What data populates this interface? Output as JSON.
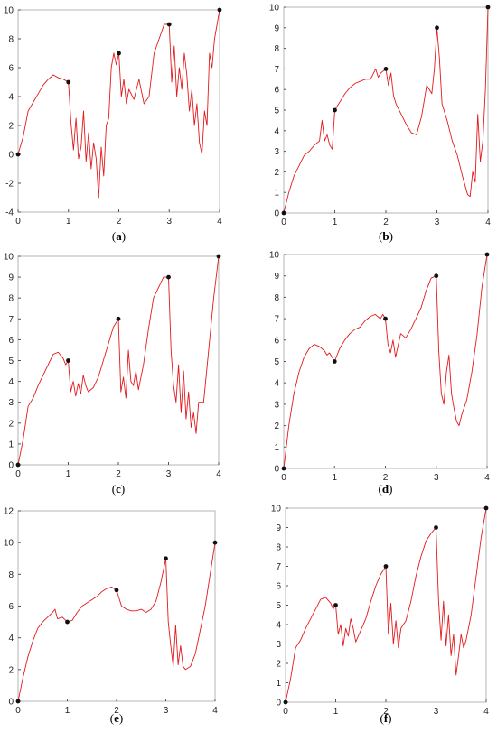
{
  "colors": {
    "curve": "#e3191c",
    "point": "#111111",
    "frame": "#b4b4b4"
  },
  "chart_data": [
    {
      "id": "a",
      "caption": "a",
      "type": "line",
      "xlim": [
        0,
        4
      ],
      "ylim": [
        -4,
        10
      ],
      "xticks": [
        0,
        1,
        2,
        3,
        4
      ],
      "yticks": [
        -4,
        -2,
        0,
        2,
        4,
        6,
        8,
        10
      ],
      "interpolation_points": [
        [
          0,
          0
        ],
        [
          1,
          5
        ],
        [
          2,
          7
        ],
        [
          3,
          9
        ],
        [
          4,
          10
        ]
      ],
      "series": [
        {
          "x": [
            0,
            0.1,
            0.2,
            0.3,
            0.4,
            0.5,
            0.6,
            0.7,
            0.8,
            0.9,
            1,
            1.05,
            1.1,
            1.15,
            1.2,
            1.25,
            1.3,
            1.35,
            1.4,
            1.45,
            1.5,
            1.55,
            1.6,
            1.65,
            1.7,
            1.75,
            1.8,
            1.85,
            1.9,
            1.95,
            2,
            2.05,
            2.1,
            2.15,
            2.2,
            2.3,
            2.4,
            2.5,
            2.6,
            2.7,
            2.8,
            2.9,
            3,
            3.05,
            3.1,
            3.15,
            3.2,
            3.25,
            3.3,
            3.35,
            3.4,
            3.45,
            3.5,
            3.55,
            3.6,
            3.65,
            3.7,
            3.75,
            3.8,
            3.85,
            3.9,
            4
          ],
          "y": [
            0,
            1.2,
            3,
            3.6,
            4.2,
            4.8,
            5.2,
            5.5,
            5.3,
            5.2,
            5,
            2.2,
            0.3,
            2.5,
            -0.3,
            0.5,
            3,
            -0.5,
            1.5,
            -1,
            0.8,
            -0.3,
            -3,
            0.5,
            -1.5,
            2,
            2.5,
            6,
            7,
            6.2,
            7,
            4,
            5.2,
            3.5,
            4.5,
            3.8,
            5.2,
            3.5,
            4,
            7,
            8,
            9,
            9,
            5,
            7.5,
            4,
            6,
            4.5,
            7,
            5.5,
            3,
            4.5,
            2,
            3.5,
            0.8,
            0,
            3,
            2,
            7,
            6,
            8,
            10
          ]
        }
      ]
    },
    {
      "id": "b",
      "caption": "b",
      "type": "line",
      "xlim": [
        0,
        4
      ],
      "ylim": [
        0,
        10
      ],
      "xticks": [
        0,
        1,
        2,
        3,
        4
      ],
      "yticks": [
        0,
        1,
        2,
        3,
        4,
        5,
        6,
        7,
        8,
        9,
        10
      ],
      "interpolation_points": [
        [
          0,
          0
        ],
        [
          1,
          5
        ],
        [
          2,
          7
        ],
        [
          3,
          9
        ],
        [
          4,
          10
        ]
      ],
      "series": [
        {
          "x": [
            0,
            0.1,
            0.2,
            0.3,
            0.4,
            0.5,
            0.6,
            0.7,
            0.75,
            0.8,
            0.85,
            0.9,
            0.95,
            1,
            1.1,
            1.2,
            1.3,
            1.4,
            1.5,
            1.6,
            1.7,
            1.8,
            1.85,
            1.9,
            2,
            2.05,
            2.1,
            2.15,
            2.2,
            2.3,
            2.4,
            2.5,
            2.6,
            2.7,
            2.8,
            2.9,
            2.95,
            3,
            3.05,
            3.1,
            3.2,
            3.3,
            3.4,
            3.5,
            3.6,
            3.65,
            3.7,
            3.75,
            3.8,
            3.85,
            3.9,
            3.95,
            4
          ],
          "y": [
            0,
            1,
            1.8,
            2.3,
            2.8,
            3,
            3.3,
            3.5,
            4.5,
            3.5,
            3.8,
            3.3,
            3.1,
            5,
            5.4,
            5.8,
            6.1,
            6.3,
            6.4,
            6.5,
            6.5,
            7,
            6.6,
            6.8,
            7,
            6.2,
            6.8,
            5.7,
            5.3,
            4.8,
            4.3,
            3.9,
            3.8,
            4.7,
            6.2,
            5.8,
            7,
            9,
            7.5,
            5.3,
            4.5,
            3.5,
            2.8,
            1.8,
            0.9,
            0.8,
            2,
            1.5,
            4.8,
            2.5,
            3.5,
            6,
            10
          ]
        }
      ]
    },
    {
      "id": "c",
      "caption": "c",
      "type": "line",
      "xlim": [
        0,
        4
      ],
      "ylim": [
        0,
        10
      ],
      "xticks": [
        0,
        1,
        2,
        3,
        4
      ],
      "yticks": [
        0,
        1,
        2,
        3,
        4,
        5,
        6,
        7,
        8,
        9,
        10
      ],
      "interpolation_points": [
        [
          0,
          0
        ],
        [
          1,
          5
        ],
        [
          2,
          7
        ],
        [
          3,
          9
        ],
        [
          4,
          10
        ]
      ],
      "series": [
        {
          "x": [
            0,
            0.1,
            0.2,
            0.3,
            0.4,
            0.5,
            0.6,
            0.7,
            0.8,
            0.9,
            0.95,
            1,
            1.05,
            1.1,
            1.15,
            1.2,
            1.25,
            1.3,
            1.35,
            1.4,
            1.5,
            1.6,
            1.7,
            1.8,
            1.9,
            1.95,
            2,
            2.05,
            2.1,
            2.15,
            2.2,
            2.25,
            2.3,
            2.35,
            2.4,
            2.5,
            2.6,
            2.7,
            2.8,
            2.9,
            3,
            3.05,
            3.1,
            3.15,
            3.2,
            3.25,
            3.3,
            3.35,
            3.4,
            3.45,
            3.5,
            3.55,
            3.6,
            3.7,
            3.8,
            3.9,
            4
          ],
          "y": [
            0,
            1.2,
            2.8,
            3.2,
            3.8,
            4.3,
            4.8,
            5.3,
            5.4,
            5.1,
            4.8,
            5,
            3.5,
            4,
            3.3,
            3.9,
            3.4,
            4.3,
            3.8,
            3.5,
            3.7,
            4.2,
            5,
            5.8,
            6.6,
            6.8,
            7,
            3.5,
            4.2,
            3.2,
            5.5,
            4,
            3.8,
            4.5,
            3.6,
            4.8,
            6.5,
            8,
            8.5,
            9,
            9,
            5.5,
            3.8,
            3,
            4.8,
            2.5,
            4.5,
            2.2,
            3.5,
            1.8,
            2.5,
            1.5,
            3,
            3,
            5.5,
            8,
            10
          ]
        }
      ]
    },
    {
      "id": "d",
      "caption": "d",
      "type": "line",
      "xlim": [
        0,
        4
      ],
      "ylim": [
        0,
        10
      ],
      "xticks": [
        0,
        1,
        2,
        3,
        4
      ],
      "yticks": [
        0,
        1,
        2,
        3,
        4,
        5,
        6,
        7,
        8,
        9,
        10
      ],
      "interpolation_points": [
        [
          0,
          0
        ],
        [
          1,
          5
        ],
        [
          2,
          7
        ],
        [
          3,
          9
        ],
        [
          4,
          10
        ]
      ],
      "series": [
        {
          "x": [
            0,
            0.1,
            0.2,
            0.3,
            0.4,
            0.5,
            0.6,
            0.7,
            0.8,
            0.85,
            0.9,
            1,
            1.05,
            1.1,
            1.2,
            1.3,
            1.4,
            1.5,
            1.6,
            1.7,
            1.8,
            1.9,
            1.95,
            2,
            2.05,
            2.1,
            2.15,
            2.2,
            2.3,
            2.4,
            2.5,
            2.6,
            2.7,
            2.8,
            2.9,
            3,
            3.05,
            3.1,
            3.15,
            3.2,
            3.25,
            3.3,
            3.35,
            3.4,
            3.45,
            3.5,
            3.6,
            3.7,
            3.8,
            3.9,
            4
          ],
          "y": [
            0,
            2,
            3.5,
            4.5,
            5.2,
            5.6,
            5.8,
            5.7,
            5.5,
            5.3,
            5.4,
            5,
            5.3,
            5.6,
            6,
            6.3,
            6.5,
            6.6,
            6.9,
            7.1,
            7.2,
            7,
            7.2,
            7,
            5.8,
            5.4,
            6,
            5.2,
            6.3,
            6.1,
            6.5,
            7,
            7.5,
            8.3,
            8.9,
            9,
            5.5,
            3.5,
            3,
            4.5,
            5.3,
            3.5,
            2.8,
            2.2,
            2,
            2.5,
            3.2,
            4.5,
            6.2,
            8.5,
            10
          ]
        }
      ]
    },
    {
      "id": "e",
      "caption": "e",
      "type": "line",
      "xlim": [
        0,
        4
      ],
      "ylim": [
        0,
        12
      ],
      "xticks": [
        0,
        1,
        2,
        3,
        4
      ],
      "yticks": [
        0,
        2,
        4,
        6,
        8,
        10,
        12
      ],
      "interpolation_points": [
        [
          0,
          0
        ],
        [
          1,
          5
        ],
        [
          2,
          7
        ],
        [
          3,
          9
        ],
        [
          4,
          10
        ]
      ],
      "series": [
        {
          "x": [
            0,
            0.1,
            0.2,
            0.3,
            0.4,
            0.5,
            0.6,
            0.7,
            0.75,
            0.8,
            0.9,
            1,
            1.1,
            1.2,
            1.3,
            1.4,
            1.5,
            1.6,
            1.7,
            1.8,
            1.9,
            2,
            2.1,
            2.2,
            2.3,
            2.4,
            2.5,
            2.6,
            2.7,
            2.8,
            2.9,
            3,
            3.05,
            3.1,
            3.15,
            3.2,
            3.25,
            3.3,
            3.35,
            3.4,
            3.5,
            3.6,
            3.7,
            3.8,
            3.9,
            4
          ],
          "y": [
            0,
            1.5,
            2.8,
            3.8,
            4.6,
            5,
            5.3,
            5.6,
            5.8,
            5.2,
            5.3,
            5,
            5.1,
            5.6,
            6,
            6.2,
            6.4,
            6.6,
            6.9,
            7.1,
            7.2,
            7,
            6,
            5.8,
            5.7,
            5.7,
            5.8,
            5.6,
            5.8,
            6.3,
            7.5,
            9,
            5,
            3.5,
            2.2,
            4.8,
            2.3,
            3.5,
            2.2,
            2,
            2.2,
            3,
            4.5,
            6,
            8,
            10
          ]
        }
      ]
    },
    {
      "id": "f",
      "caption": "f",
      "type": "line",
      "xlim": [
        0,
        4
      ],
      "ylim": [
        0,
        10
      ],
      "xticks": [
        0,
        1,
        2,
        3,
        4
      ],
      "yticks": [
        0,
        1,
        2,
        3,
        4,
        5,
        6,
        7,
        8,
        9,
        10
      ],
      "interpolation_points": [
        [
          0,
          0
        ],
        [
          1,
          5
        ],
        [
          2,
          7
        ],
        [
          3,
          9
        ],
        [
          4,
          10
        ]
      ],
      "series": [
        {
          "x": [
            0,
            0.1,
            0.2,
            0.3,
            0.4,
            0.5,
            0.6,
            0.7,
            0.8,
            0.9,
            0.95,
            1,
            1.05,
            1.1,
            1.15,
            1.2,
            1.25,
            1.3,
            1.35,
            1.4,
            1.5,
            1.6,
            1.7,
            1.8,
            1.9,
            1.95,
            2,
            2.05,
            2.1,
            2.15,
            2.2,
            2.25,
            2.3,
            2.4,
            2.5,
            2.6,
            2.7,
            2.8,
            2.9,
            3,
            3.05,
            3.1,
            3.15,
            3.2,
            3.25,
            3.3,
            3.35,
            3.4,
            3.45,
            3.5,
            3.55,
            3.6,
            3.7,
            3.8,
            3.9,
            4
          ],
          "y": [
            0,
            1.2,
            2.8,
            3.2,
            3.8,
            4.3,
            4.8,
            5.3,
            5.4,
            5.1,
            4.8,
            5,
            3.5,
            4,
            2.9,
            3.8,
            3.4,
            4.3,
            3.8,
            3.1,
            3.7,
            4.3,
            5.2,
            6,
            6.6,
            6.8,
            7,
            3.5,
            5.1,
            3,
            4.2,
            2.8,
            3.8,
            4.2,
            5.2,
            6.5,
            7.5,
            8.3,
            8.7,
            9,
            5.3,
            3.2,
            5.2,
            2.9,
            4.5,
            2.4,
            3.5,
            1.4,
            2.4,
            3.5,
            2.8,
            3.2,
            4.5,
            6.5,
            8.5,
            10
          ]
        }
      ]
    }
  ]
}
